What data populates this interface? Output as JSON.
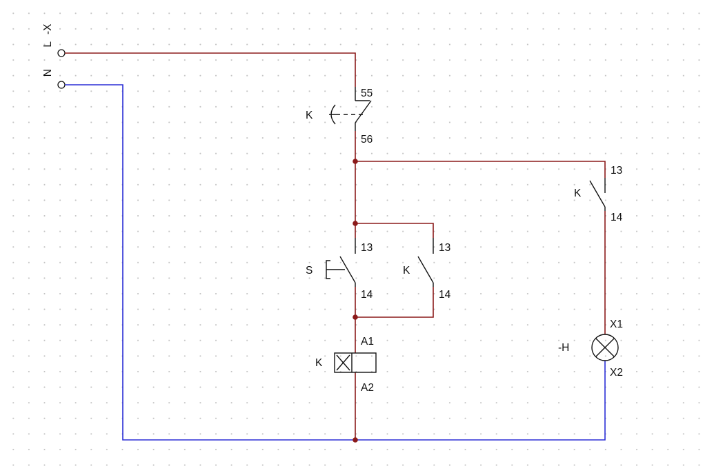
{
  "colors": {
    "live_wire": "#8b1a1a",
    "neutral_wire": "#2b2fd6",
    "symbol": "#111111",
    "grid_dot": "#c4c4c4"
  },
  "terminal_strip": {
    "name": "-X",
    "terminals": [
      "L",
      "N"
    ]
  },
  "relay_contact_nc": {
    "device": "K",
    "pin_top": "55",
    "pin_bottom": "56"
  },
  "hold_contact_lamp": {
    "device": "K",
    "pin_top": "13",
    "pin_bottom": "14"
  },
  "pushbutton": {
    "device": "S",
    "pin_top": "13",
    "pin_bottom": "14"
  },
  "self_hold_contact": {
    "device": "K",
    "pin_top": "13",
    "pin_bottom": "14"
  },
  "coil": {
    "device": "K",
    "pin_top": "A1",
    "pin_bottom": "A2"
  },
  "lamp": {
    "device": "-H",
    "pin_top": "X1",
    "pin_bottom": "X2"
  }
}
